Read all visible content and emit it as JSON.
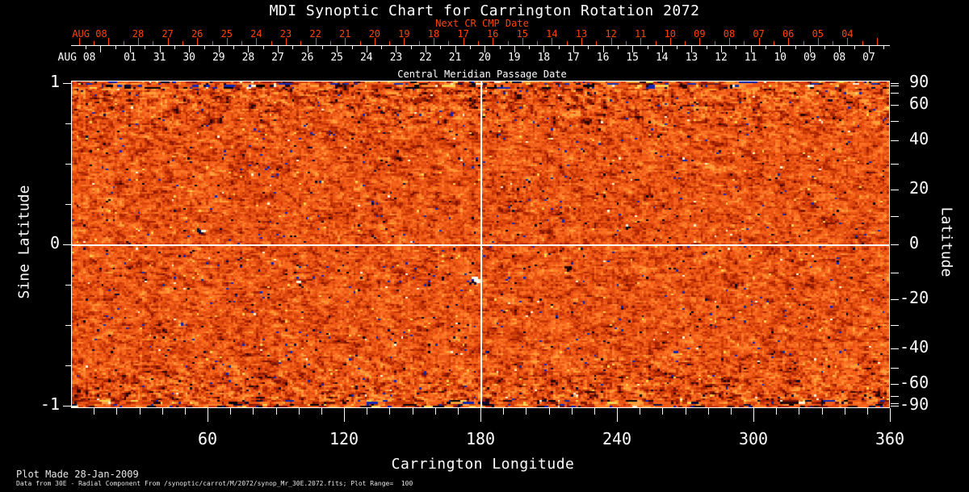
{
  "title": "MDI Synoptic Chart for Carrington Rotation 2072",
  "colors": {
    "background": "#000000",
    "foreground": "#ffffff",
    "next_cr_red": "#ff4400",
    "footer_text": "#e6e6e6"
  },
  "top_axis": {
    "next_cr_label": "Next CR CMP Date",
    "axis_title": "Central Meridian Passage Date"
  },
  "footer": {
    "line1": "Plot Made 28-Jan-2009",
    "line2": "Data from 30E - Radial Component From /synoptic/carrot/M/2072/synop_Mr_30E.2072.fits; Plot Range=  100"
  },
  "chart_data": {
    "type": "heatmap",
    "title": "MDI Synoptic Chart for Carrington Rotation 2072",
    "xlabel": "Carrington Longitude",
    "ylabel_left": "Sine Latitude",
    "ylabel_right": "Latitude",
    "x_range": [
      0,
      360
    ],
    "x_ticks": [
      60,
      120,
      180,
      240,
      300,
      360
    ],
    "x_minor_tick_step": 10,
    "y_range_sine": [
      -1,
      1
    ],
    "y_ticks_sine": [
      1,
      0,
      -1
    ],
    "y_minor_tick_step_sine": 0.25,
    "y_ticks_latitude": [
      90,
      60,
      40,
      20,
      0,
      -20,
      -40,
      -60,
      -90
    ],
    "y_minor_tick_step_latitude": 10,
    "plot_range": 100,
    "grid": false,
    "reference_lines": {
      "longitude": 180,
      "sine_latitude": 0
    },
    "cmp_date_axis": {
      "month": "AUG 08",
      "days": [
        "01",
        "31",
        "30",
        "29",
        "28",
        "27",
        "26",
        "25",
        "24",
        "23",
        "22",
        "21",
        "20",
        "19",
        "18",
        "17",
        "16",
        "15",
        "14",
        "13",
        "12",
        "11",
        "10",
        "09",
        "08",
        "07"
      ]
    },
    "next_cr_cmp_date_axis": {
      "month": "AUG 08",
      "days": [
        "28",
        "27",
        "26",
        "25",
        "24",
        "23",
        "22",
        "21",
        "20",
        "19",
        "18",
        "17",
        "16",
        "15",
        "14",
        "13",
        "12",
        "11",
        "10",
        "09",
        "08",
        "07",
        "06",
        "05",
        "04"
      ]
    },
    "palette": [
      "#2a0500",
      "#7c1400",
      "#a82300",
      "#c63605",
      "#dc470d",
      "#ea5414",
      "#f4601a",
      "#fa6f22",
      "#ff832c",
      "#ffa03a",
      "#ffd44e",
      "#fff6d8",
      "#1026b0",
      "#070b38",
      "#000000",
      "#ffffff"
    ]
  }
}
